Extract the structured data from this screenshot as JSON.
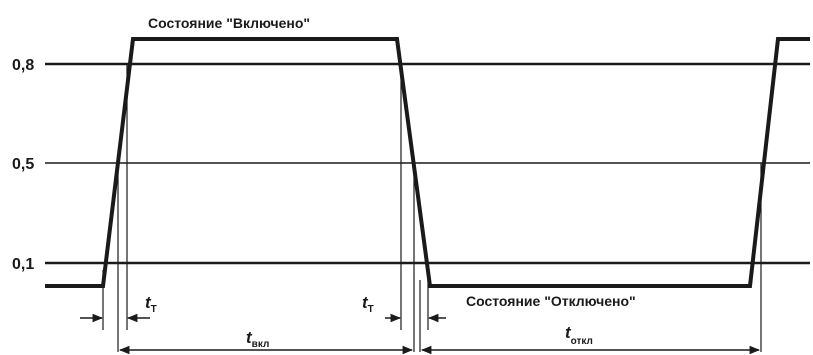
{
  "levels": {
    "high": "0,8",
    "mid": "0,5",
    "low": "0,1"
  },
  "states": {
    "on": "Состояние \"Включено\"",
    "off": "Состояние \"Отключено\""
  },
  "intervals": {
    "rise_time_symbol": "t",
    "rise_time_sub": "T",
    "fall_time_symbol": "t",
    "fall_time_sub": "T",
    "on_time_symbol": "t",
    "on_time_sub": "вкл",
    "off_time_symbol": "t",
    "off_time_sub": "откл"
  },
  "colors": {
    "ink": "#1a1a1a",
    "background": "#ffffff"
  }
}
